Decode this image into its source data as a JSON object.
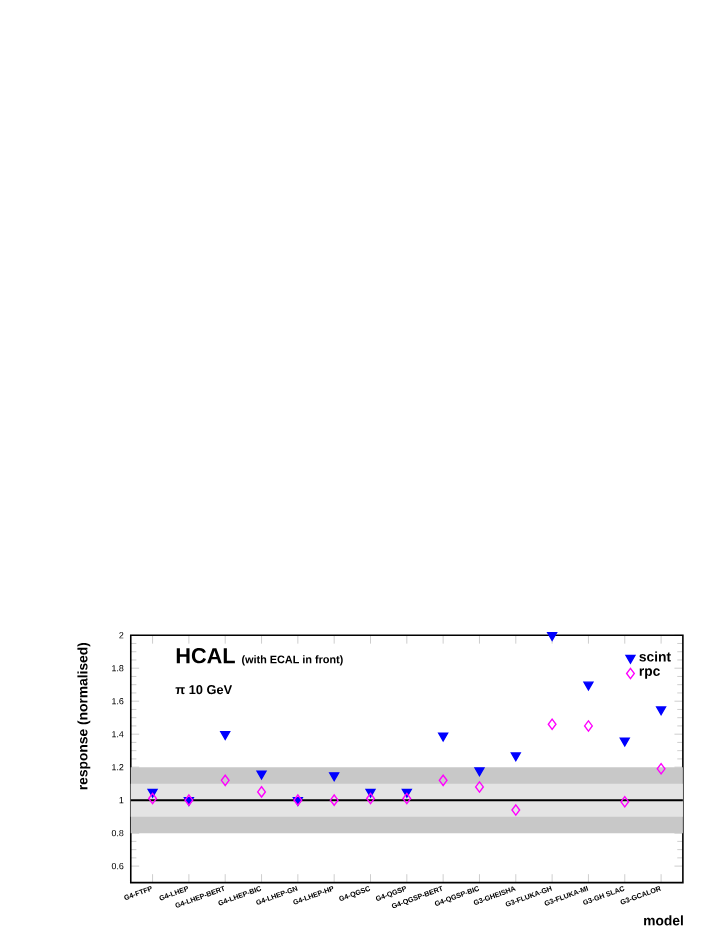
{
  "chart_data": {
    "type": "scatter",
    "title": "HCAL",
    "subtitle": "(with ECAL in front)",
    "xlabel": "model",
    "ylabel": "response (normalised)",
    "annotations": [
      "π 10 GeV"
    ],
    "categories": [
      "G4-FTFP",
      "G4-LHEP",
      "G4-LHEP-BERT",
      "G4-LHEP-BIC",
      "G4-LHEP-GN",
      "G4-LHEP-HP",
      "G4-QGSC",
      "G4-QGSP",
      "G4-QGSP-BERT",
      "G4-QGSP-BIC",
      "G3-GHEISHA",
      "G3-FLUKA-GH",
      "G3-FLUKA-MI",
      "G3-GH SLAC",
      "G3-GCALOR"
    ],
    "series": [
      {
        "name": "scint",
        "color": "#0000ff",
        "marker": "triangle",
        "values": [
          1.05,
          1.0,
          1.4,
          1.16,
          1.0,
          1.15,
          1.05,
          1.05,
          1.39,
          1.18,
          1.27,
          2.0,
          1.7,
          1.36,
          1.55
        ]
      },
      {
        "name": "rpc",
        "color": "#ff00ff",
        "marker": "diamond",
        "values": [
          1.01,
          1.0,
          1.12,
          1.05,
          1.0,
          1.0,
          1.01,
          1.01,
          1.12,
          1.08,
          0.94,
          1.46,
          1.45,
          0.99,
          1.19
        ]
      }
    ],
    "ylim": [
      0.5,
      2
    ],
    "yticks": [
      0.6,
      0.8,
      1,
      1.2,
      1.4,
      1.6,
      1.8,
      2
    ],
    "bands": [
      {
        "axis": "y",
        "from": 0.8,
        "to": 1.2,
        "color": "#c8c8c8"
      },
      {
        "axis": "y",
        "from": 0.9,
        "to": 1.1,
        "color": "#e4e4e4"
      }
    ],
    "ref_lines": [
      {
        "axis": "y",
        "value": 1,
        "color": "#000000"
      }
    ],
    "legend": "top right",
    "grid": false
  }
}
